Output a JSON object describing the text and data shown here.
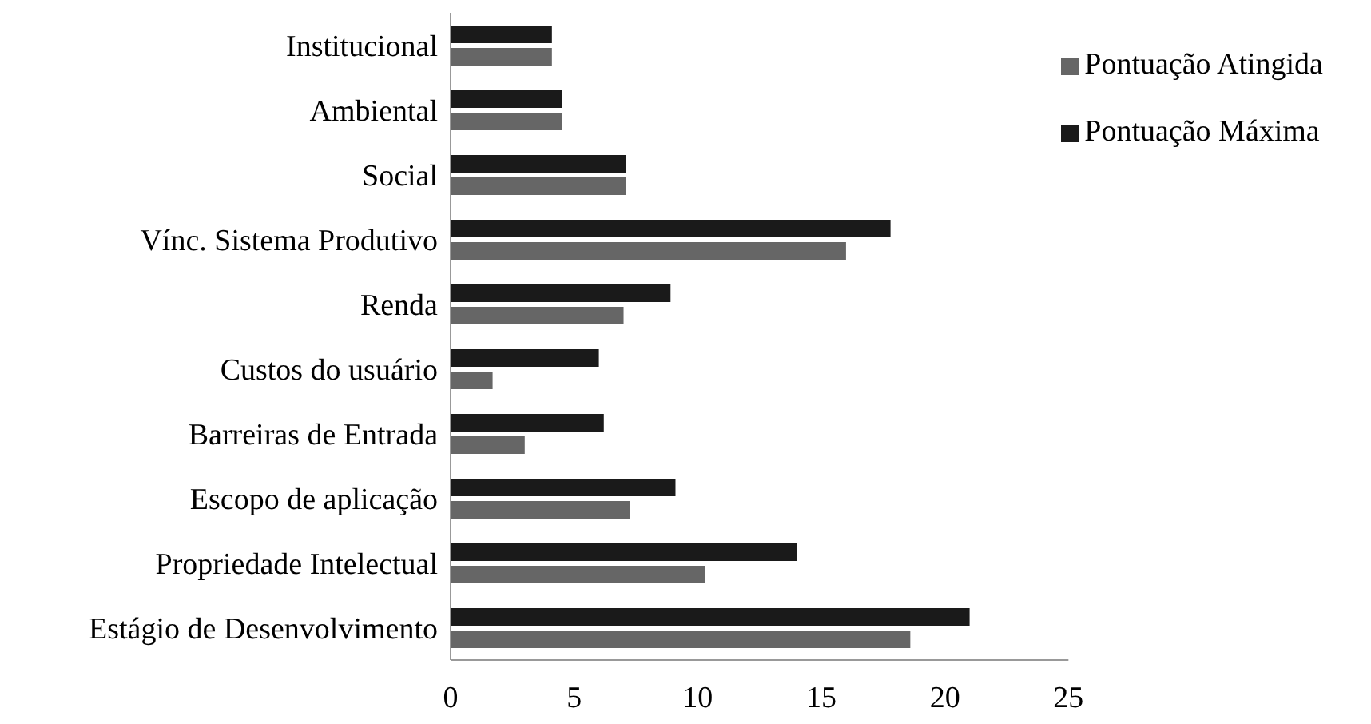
{
  "chart_data": {
    "type": "bar",
    "orientation": "horizontal",
    "categories": [
      "Institucional",
      "Ambiental",
      "Social",
      "Vínc. Sistema Produtivo",
      "Renda",
      "Custos do usuário",
      "Barreiras de Entrada",
      "Escopo de aplicação",
      "Propriedade Intelectual",
      "Estágio de Desenvolvimento"
    ],
    "series": [
      {
        "name": "Pontuação Máxima",
        "color": "#1a1a1a",
        "values": [
          4.1,
          4.5,
          7.1,
          17.8,
          8.9,
          6.0,
          6.2,
          9.1,
          14.0,
          21.0
        ]
      },
      {
        "name": "Pontuação Atingida",
        "color": "#666666",
        "values": [
          4.1,
          4.5,
          7.1,
          16.0,
          7.0,
          1.7,
          3.0,
          7.25,
          10.3,
          18.6
        ]
      }
    ],
    "xlim": [
      0,
      25
    ],
    "xticks": [
      0,
      5,
      10,
      15,
      20,
      25
    ],
    "grid": false,
    "legend": "top right"
  }
}
